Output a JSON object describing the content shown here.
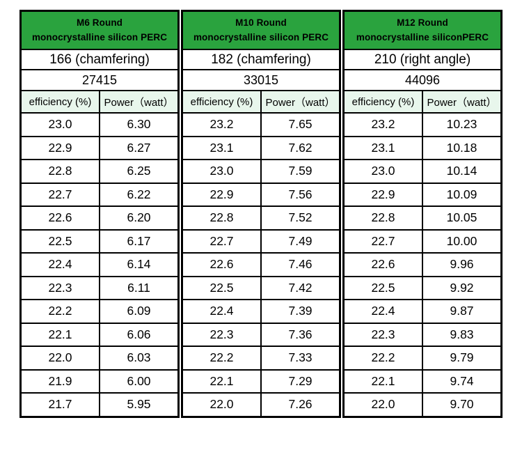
{
  "chart_data": {
    "type": "table",
    "title": "Monocrystalline silicon PERC cell efficiency and power table",
    "groups": [
      {
        "title1": "M6 Round",
        "title2": "monocrystalline silicon PERC",
        "size": "166 (chamfering)",
        "value": "27415",
        "col_efficiency": "efficiency (%)",
        "col_power": "Power（watt）",
        "rows": [
          [
            "23.0",
            "6.30"
          ],
          [
            "22.9",
            "6.27"
          ],
          [
            "22.8",
            "6.25"
          ],
          [
            "22.7",
            "6.22"
          ],
          [
            "22.6",
            "6.20"
          ],
          [
            "22.5",
            "6.17"
          ],
          [
            "22.4",
            "6.14"
          ],
          [
            "22.3",
            "6.11"
          ],
          [
            "22.2",
            "6.09"
          ],
          [
            "22.1",
            "6.06"
          ],
          [
            "22.0",
            "6.03"
          ],
          [
            "21.9",
            "6.00"
          ],
          [
            "21.7",
            "5.95"
          ]
        ]
      },
      {
        "title1": "M10 Round",
        "title2": "monocrystalline silicon PERC",
        "size": "182 (chamfering)",
        "value": "33015",
        "col_efficiency": "efficiency (%)",
        "col_power": "Power（watt）",
        "rows": [
          [
            "23.2",
            "7.65"
          ],
          [
            "23.1",
            "7.62"
          ],
          [
            "23.0",
            "7.59"
          ],
          [
            "22.9",
            "7.56"
          ],
          [
            "22.8",
            "7.52"
          ],
          [
            "22.7",
            "7.49"
          ],
          [
            "22.6",
            "7.46"
          ],
          [
            "22.5",
            "7.42"
          ],
          [
            "22.4",
            "7.39"
          ],
          [
            "22.3",
            "7.36"
          ],
          [
            "22.2",
            "7.33"
          ],
          [
            "22.1",
            "7.29"
          ],
          [
            "22.0",
            "7.26"
          ]
        ]
      },
      {
        "title1": "M12 Round",
        "title2": "monocrystalline siliconPERC",
        "size": "210 (right angle)",
        "value": "44096",
        "col_efficiency": "efficiency (%)",
        "col_power": "Power（watt）",
        "rows": [
          [
            "23.2",
            "10.23"
          ],
          [
            "23.1",
            "10.18"
          ],
          [
            "23.0",
            "10.14"
          ],
          [
            "22.9",
            "10.09"
          ],
          [
            "22.8",
            "10.05"
          ],
          [
            "22.7",
            "10.00"
          ],
          [
            "22.6",
            "9.96"
          ],
          [
            "22.5",
            "9.92"
          ],
          [
            "22.4",
            "9.87"
          ],
          [
            "22.3",
            "9.83"
          ],
          [
            "22.2",
            "9.79"
          ],
          [
            "22.1",
            "9.74"
          ],
          [
            "22.0",
            "9.70"
          ]
        ]
      }
    ],
    "layout": {
      "grid": "three side-by-side sub-tables, black 2-3px borders, 13 data rows each"
    }
  },
  "colors": {
    "header_green": "#2aa33e",
    "subheader_green": "#e8f6ec",
    "border": "#000000",
    "background": "#ffffff",
    "text": "#000000"
  }
}
